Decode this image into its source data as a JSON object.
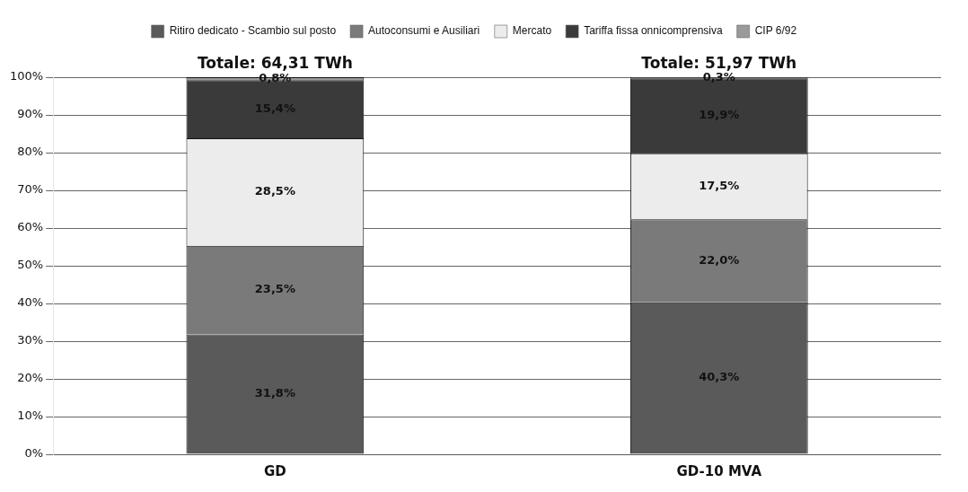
{
  "chart_data": {
    "type": "bar",
    "stacked": true,
    "categories": [
      "GD",
      "GD-10 MVA"
    ],
    "series": [
      {
        "name": "Ritiro dedicato - Scambio sul posto",
        "color": "#5a5a5a",
        "values": [
          31.8,
          40.3
        ],
        "value_labels": [
          "31,8%",
          "40,3%"
        ]
      },
      {
        "name": "Autoconsumi e Ausiliari",
        "color": "#7a7a7a",
        "values": [
          23.5,
          22.0
        ],
        "value_labels": [
          "23,5%",
          "22,0%"
        ]
      },
      {
        "name": "Mercato",
        "color": "#ececec",
        "values": [
          28.5,
          17.5
        ],
        "value_labels": [
          "28,5%",
          "17,5%"
        ]
      },
      {
        "name": "Tariffa fissa onnicomprensiva",
        "color": "#3a3a3a",
        "values": [
          15.4,
          19.9
        ],
        "value_labels": [
          "15,4%",
          "19,9%"
        ]
      },
      {
        "name": "CIP 6/92",
        "color": "#9a9a9a",
        "values": [
          0.8,
          0.3
        ],
        "value_labels": [
          "0,8%",
          "0,3%"
        ]
      }
    ],
    "ylim": [
      0,
      100
    ],
    "yticks": [
      {
        "value": 0,
        "label": "0%"
      },
      {
        "value": 10,
        "label": "10%"
      },
      {
        "value": 20,
        "label": "20%"
      },
      {
        "value": 30,
        "label": "30%"
      },
      {
        "value": 40,
        "label": "40%"
      },
      {
        "value": 50,
        "label": "50%"
      },
      {
        "value": 60,
        "label": "60%"
      },
      {
        "value": 70,
        "label": "70%"
      },
      {
        "value": 80,
        "label": "80%"
      },
      {
        "value": 90,
        "label": "90%"
      },
      {
        "value": 100,
        "label": "100%"
      }
    ],
    "grid": "y",
    "legend": "top",
    "annotations": [
      {
        "text": "Totale: 64,31 TWh",
        "x": "GD",
        "y": 100
      },
      {
        "text": "Totale: 51,97 TWh",
        "x": "GD-10 MVA",
        "y": 100
      }
    ]
  }
}
